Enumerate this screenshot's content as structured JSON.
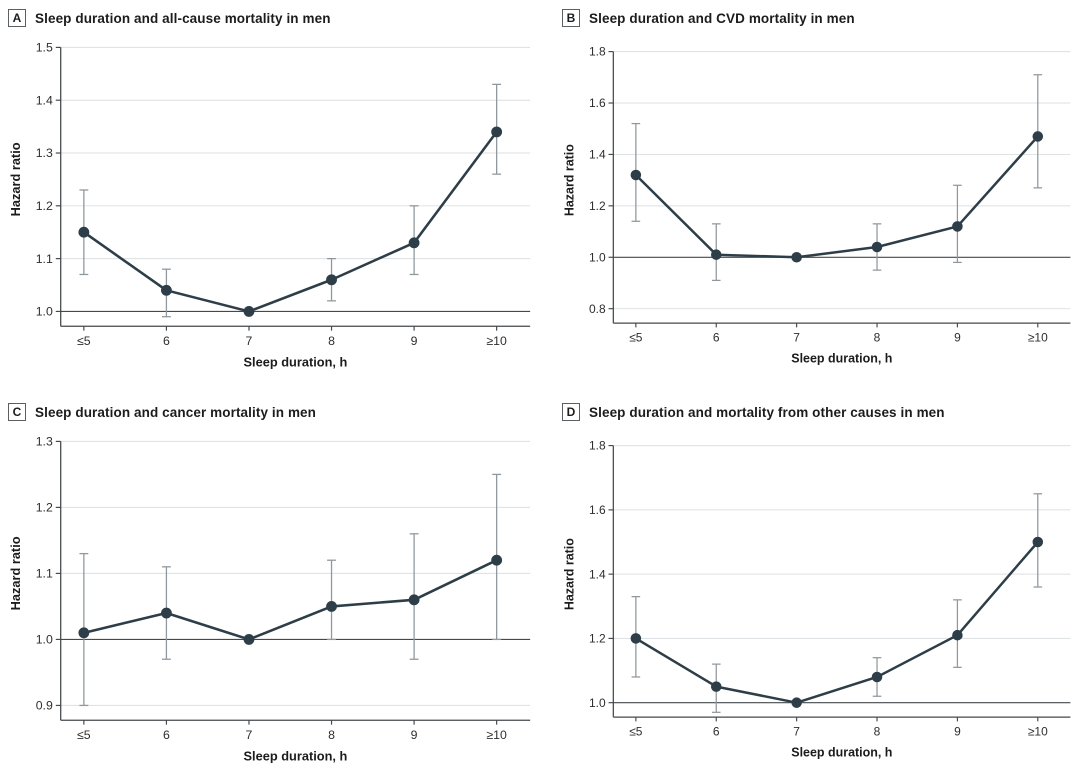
{
  "figure": {
    "background": "#ffffff",
    "panel_count": 4
  },
  "chart_data": [
    {
      "type": "line",
      "panel_letter": "A",
      "title": "Sleep duration and all-cause mortality in men",
      "xlabel": "Sleep duration, h",
      "ylabel": "Hazard ratio",
      "categories": [
        "≤5",
        "6",
        "7",
        "8",
        "9",
        "≥10"
      ],
      "yticks": [
        1.0,
        1.1,
        1.2,
        1.3,
        1.4,
        1.5
      ],
      "ylim": [
        1.0,
        1.5
      ],
      "reference_line": 1.0,
      "grid": true,
      "legend": "none",
      "series": [
        {
          "name": "Hazard ratio (95% CI)",
          "values": [
            1.15,
            1.04,
            1.0,
            1.06,
            1.13,
            1.34
          ],
          "ci_low": [
            1.07,
            0.99,
            null,
            1.02,
            1.07,
            1.26
          ],
          "ci_high": [
            1.23,
            1.08,
            null,
            1.1,
            1.2,
            1.43
          ]
        }
      ]
    },
    {
      "type": "line",
      "panel_letter": "B",
      "title": "Sleep duration and CVD mortality in men",
      "xlabel": "Sleep duration, h",
      "ylabel": "Hazard ratio",
      "categories": [
        "≤5",
        "6",
        "7",
        "8",
        "9",
        "≥10"
      ],
      "yticks": [
        0.8,
        1.0,
        1.2,
        1.4,
        1.6,
        1.8
      ],
      "ylim": [
        0.8,
        1.8
      ],
      "reference_line": 1.0,
      "grid": true,
      "legend": "none",
      "series": [
        {
          "name": "Hazard ratio (95% CI)",
          "values": [
            1.32,
            1.01,
            1.0,
            1.04,
            1.12,
            1.47
          ],
          "ci_low": [
            1.14,
            0.91,
            null,
            0.95,
            0.98,
            1.27
          ],
          "ci_high": [
            1.52,
            1.13,
            null,
            1.13,
            1.28,
            1.71
          ]
        }
      ]
    },
    {
      "type": "line",
      "panel_letter": "C",
      "title": "Sleep duration and cancer mortality in men",
      "xlabel": "Sleep duration, h",
      "ylabel": "Hazard ratio",
      "categories": [
        "≤5",
        "6",
        "7",
        "8",
        "9",
        "≥10"
      ],
      "yticks": [
        0.9,
        1.0,
        1.1,
        1.2,
        1.3
      ],
      "ylim": [
        0.9,
        1.3
      ],
      "reference_line": 1.0,
      "grid": true,
      "legend": "none",
      "series": [
        {
          "name": "Hazard ratio (95% CI)",
          "values": [
            1.01,
            1.04,
            1.0,
            1.05,
            1.06,
            1.12
          ],
          "ci_low": [
            0.9,
            0.97,
            null,
            1.0,
            0.97,
            1.0
          ],
          "ci_high": [
            1.13,
            1.11,
            null,
            1.12,
            1.16,
            1.25
          ]
        }
      ]
    },
    {
      "type": "line",
      "panel_letter": "D",
      "title": "Sleep duration and mortality from other causes in men",
      "xlabel": "Sleep duration, h",
      "ylabel": "Hazard ratio",
      "categories": [
        "≤5",
        "6",
        "7",
        "8",
        "9",
        "≥10"
      ],
      "yticks": [
        1.0,
        1.2,
        1.4,
        1.6,
        1.8
      ],
      "ylim": [
        1.0,
        1.8
      ],
      "reference_line": 1.0,
      "grid": true,
      "legend": "none",
      "series": [
        {
          "name": "Hazard ratio (95% CI)",
          "values": [
            1.2,
            1.05,
            1.0,
            1.08,
            1.21,
            1.5
          ],
          "ci_low": [
            1.08,
            0.97,
            null,
            1.02,
            1.11,
            1.36
          ],
          "ci_high": [
            1.33,
            1.12,
            null,
            1.14,
            1.32,
            1.65
          ]
        }
      ]
    }
  ],
  "colors": {
    "series": "#2d3e48",
    "error_bar": "#8f989d",
    "gridline": "#dcdfe2",
    "axis": "#44494d",
    "reference_line": "#44494d",
    "title_text": "#1c1c1c",
    "tick_text": "#2e2e2e",
    "background": "#ffffff"
  }
}
